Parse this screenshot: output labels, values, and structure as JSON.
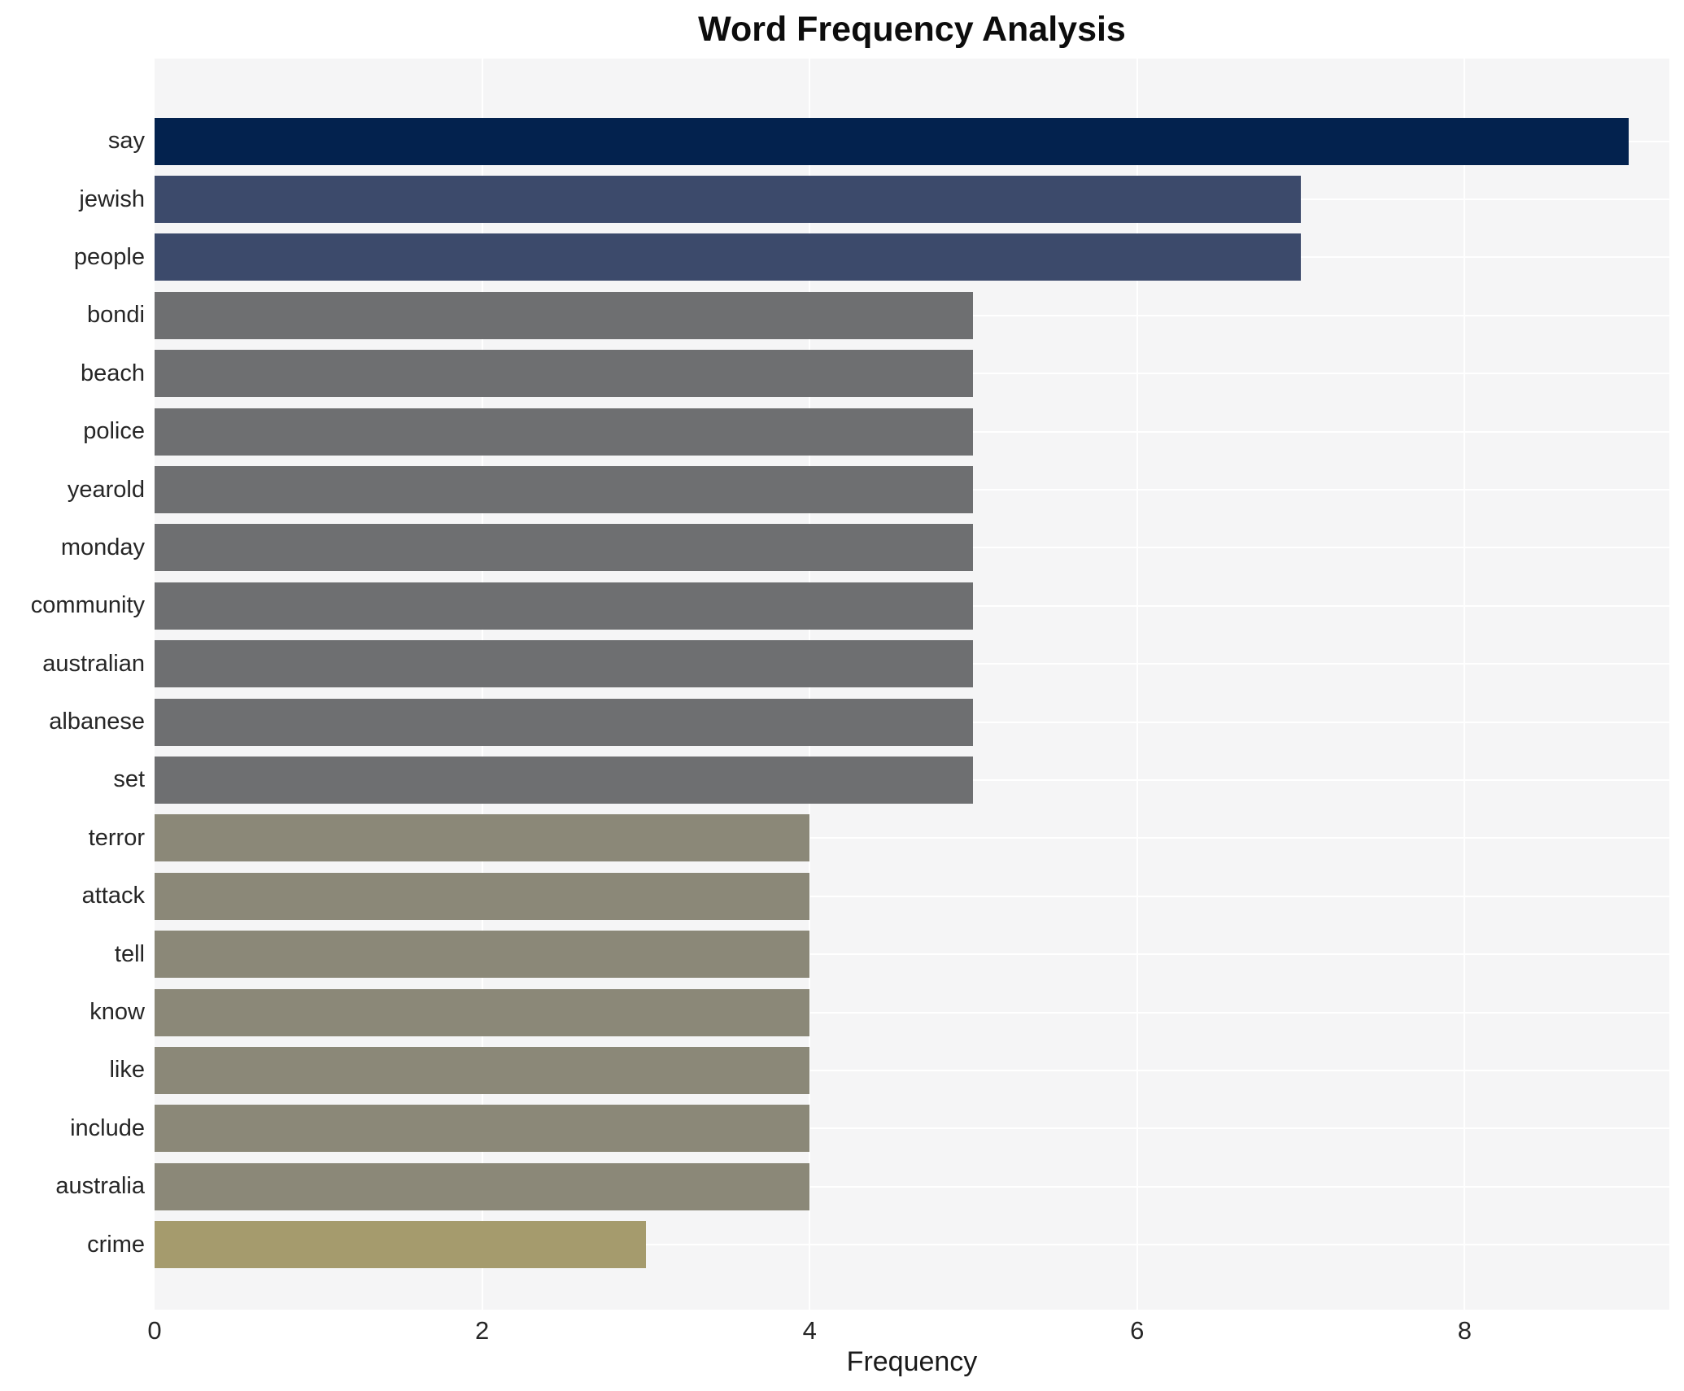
{
  "chart_data": {
    "type": "bar",
    "orientation": "horizontal",
    "title": "Word Frequency Analysis",
    "xlabel": "Frequency",
    "ylabel": "",
    "categories": [
      "say",
      "jewish",
      "people",
      "bondi",
      "beach",
      "police",
      "yearold",
      "monday",
      "community",
      "australian",
      "albanese",
      "set",
      "terror",
      "attack",
      "tell",
      "know",
      "like",
      "include",
      "australia",
      "crime"
    ],
    "values": [
      9,
      7,
      7,
      5,
      5,
      5,
      5,
      5,
      5,
      5,
      5,
      5,
      4,
      4,
      4,
      4,
      4,
      4,
      4,
      3
    ],
    "bar_colors": [
      "#03224e",
      "#3c4a6b",
      "#3c4a6b",
      "#6e6f71",
      "#6e6f71",
      "#6e6f71",
      "#6e6f71",
      "#6e6f71",
      "#6e6f71",
      "#6e6f71",
      "#6e6f71",
      "#6e6f71",
      "#8b8878",
      "#8b8878",
      "#8b8878",
      "#8b8878",
      "#8b8878",
      "#8b8878",
      "#8b8878",
      "#a59b6d"
    ],
    "x_ticks": [
      0,
      2,
      4,
      6,
      8
    ],
    "xlim": [
      0,
      9.25
    ],
    "grid": true,
    "grid_color": "#ffffff",
    "plot_bg": "#f5f5f6",
    "legend": false
  }
}
